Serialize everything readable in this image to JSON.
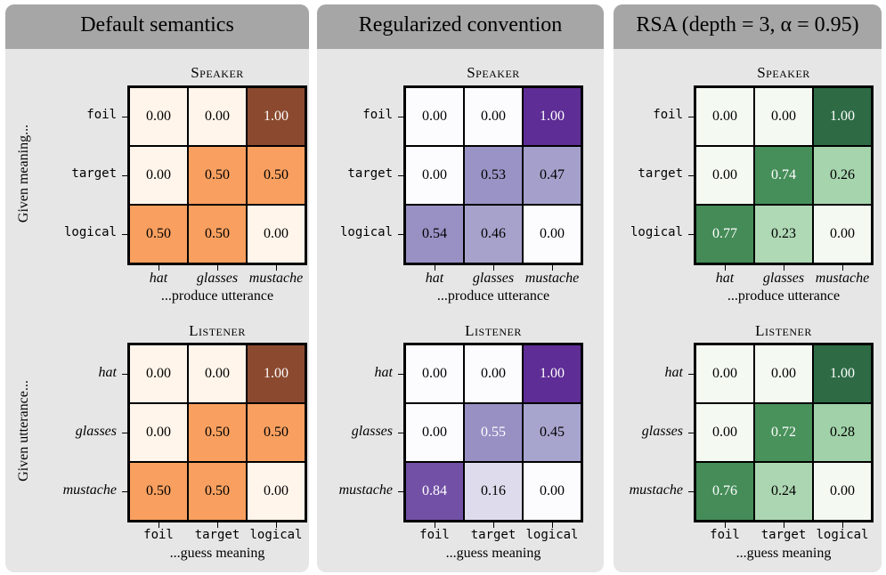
{
  "chart_data": [
    {
      "type": "heatmap",
      "panel_title": "Default semantics",
      "cmap": "orange",
      "speaker": {
        "title": "Speaker",
        "row_axis_caption": "Given meaning...",
        "col_axis_caption": "...produce utterance",
        "rows": [
          "foil",
          "target",
          "logical"
        ],
        "cols": [
          "hat",
          "glasses",
          "mustache"
        ],
        "values": [
          [
            0.0,
            0.0,
            1.0
          ],
          [
            0.0,
            0.5,
            0.5
          ],
          [
            0.5,
            0.5,
            0.0
          ]
        ],
        "labels": [
          [
            "0.00",
            "0.00",
            "1.00"
          ],
          [
            "0.00",
            "0.50",
            "0.50"
          ],
          [
            "0.50",
            "0.50",
            "0.00"
          ]
        ]
      },
      "listener": {
        "title": "Listener",
        "row_axis_caption": "Given utterance...",
        "col_axis_caption": "...guess meaning",
        "rows": [
          "hat",
          "glasses",
          "mustache"
        ],
        "cols": [
          "foil",
          "target",
          "logical"
        ],
        "values": [
          [
            0.0,
            0.0,
            1.0
          ],
          [
            0.0,
            0.5,
            0.5
          ],
          [
            0.5,
            0.5,
            0.0
          ]
        ],
        "labels": [
          [
            "0.00",
            "0.00",
            "1.00"
          ],
          [
            "0.00",
            "0.50",
            "0.50"
          ],
          [
            "0.50",
            "0.50",
            "0.00"
          ]
        ]
      }
    },
    {
      "type": "heatmap",
      "panel_title": "Regularized convention",
      "cmap": "purple",
      "speaker": {
        "title": "Speaker",
        "row_axis_caption": "",
        "col_axis_caption": "...produce utterance",
        "rows": [
          "foil",
          "target",
          "logical"
        ],
        "cols": [
          "hat",
          "glasses",
          "mustache"
        ],
        "values": [
          [
            0.0,
            0.0,
            1.0
          ],
          [
            0.0,
            0.53,
            0.47
          ],
          [
            0.54,
            0.46,
            0.0
          ]
        ],
        "labels": [
          [
            "0.00",
            "0.00",
            "1.00"
          ],
          [
            "0.00",
            "0.53",
            "0.47"
          ],
          [
            "0.54",
            "0.46",
            "0.00"
          ]
        ]
      },
      "listener": {
        "title": "Listener",
        "row_axis_caption": "",
        "col_axis_caption": "...guess meaning",
        "rows": [
          "hat",
          "glasses",
          "mustache"
        ],
        "cols": [
          "foil",
          "target",
          "logical"
        ],
        "values": [
          [
            0.0,
            0.0,
            1.0
          ],
          [
            0.0,
            0.55,
            0.45
          ],
          [
            0.84,
            0.16,
            0.0
          ]
        ],
        "labels": [
          [
            "0.00",
            "0.00",
            "1.00"
          ],
          [
            "0.00",
            "0.55",
            "0.45"
          ],
          [
            "0.84",
            "0.16",
            "0.00"
          ]
        ]
      }
    },
    {
      "type": "heatmap",
      "panel_title": "RSA (depth = 3, α = 0.95)",
      "cmap": "green",
      "speaker": {
        "title": "Speaker",
        "row_axis_caption": "",
        "col_axis_caption": "...produce utterance",
        "rows": [
          "foil",
          "target",
          "logical"
        ],
        "cols": [
          "hat",
          "glasses",
          "mustache"
        ],
        "values": [
          [
            0.0,
            0.0,
            1.0
          ],
          [
            0.0,
            0.74,
            0.26
          ],
          [
            0.77,
            0.23,
            0.0
          ]
        ],
        "labels": [
          [
            "0.00",
            "0.00",
            "1.00"
          ],
          [
            "0.00",
            "0.74",
            "0.26"
          ],
          [
            "0.77",
            "0.23",
            "0.00"
          ]
        ]
      },
      "listener": {
        "title": "Listener",
        "row_axis_caption": "",
        "col_axis_caption": "...guess meaning",
        "rows": [
          "hat",
          "glasses",
          "mustache"
        ],
        "cols": [
          "foil",
          "target",
          "logical"
        ],
        "values": [
          [
            0.0,
            0.0,
            1.0
          ],
          [
            0.0,
            0.72,
            0.28
          ],
          [
            0.76,
            0.24,
            0.0
          ]
        ],
        "labels": [
          [
            "0.00",
            "0.00",
            "1.00"
          ],
          [
            "0.00",
            "0.72",
            "0.28"
          ],
          [
            "0.76",
            "0.24",
            "0.00"
          ]
        ]
      }
    }
  ],
  "colors": {
    "panel_bg": "#e6e6e6",
    "header_bg": "#a6a6a6",
    "orange": {
      "low": "#fff5eb",
      "mid": "#f9a060",
      "high": "#8b4a30"
    },
    "purple": {
      "low": "#fcfbfd",
      "mid": "#9e9ac8",
      "high": "#5e2d95"
    },
    "green": {
      "low": "#f4faf2",
      "mid": "#5eb06d",
      "high": "#2e6b45"
    }
  }
}
